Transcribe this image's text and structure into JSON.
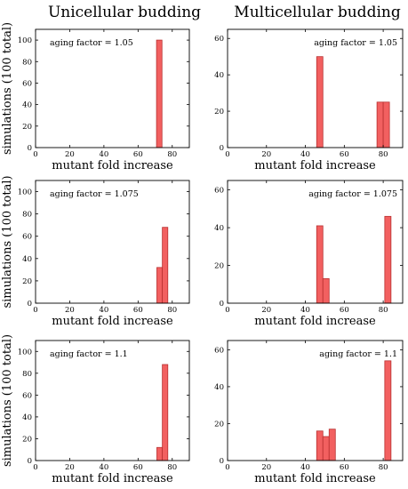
{
  "column_titles": [
    "Unicellular budding",
    "Multicellular budding"
  ],
  "chart_data": [
    {
      "type": "bar",
      "annotation": "aging factor = 1.05",
      "xlabel": "mutant fold increase",
      "ylabel": "simulations (100 total)",
      "xlim": [
        0,
        90
      ],
      "ylim": [
        0,
        110
      ],
      "xticks": [
        0,
        20,
        40,
        60,
        80
      ],
      "yticks": [
        0,
        20,
        40,
        60,
        80,
        100
      ],
      "bin_width": 3.2,
      "bars": [
        {
          "x": 72.4,
          "value": 100
        }
      ]
    },
    {
      "type": "bar",
      "annotation": "aging factor = 1.05",
      "xlabel": "mutant fold increase",
      "ylabel": "",
      "xlim": [
        0,
        90
      ],
      "ylim": [
        0,
        65
      ],
      "xticks": [
        0,
        20,
        40,
        60,
        80
      ],
      "yticks": [
        0,
        20,
        40,
        60
      ],
      "bin_width": 3.2,
      "bars": [
        {
          "x": 47.4,
          "value": 50
        },
        {
          "x": 78.4,
          "value": 25
        },
        {
          "x": 81.6,
          "value": 25
        }
      ]
    },
    {
      "type": "bar",
      "annotation": "aging factor = 1.075",
      "xlabel": "mutant fold increase",
      "ylabel": "simulations (100 total)",
      "xlim": [
        0,
        90
      ],
      "ylim": [
        0,
        110
      ],
      "xticks": [
        0,
        20,
        40,
        60,
        80
      ],
      "yticks": [
        0,
        20,
        40,
        60,
        80,
        100
      ],
      "bin_width": 3.2,
      "bars": [
        {
          "x": 72.6,
          "value": 32
        },
        {
          "x": 75.8,
          "value": 68
        }
      ]
    },
    {
      "type": "bar",
      "annotation": "aging factor = 1.075",
      "xlabel": "mutant fold increase",
      "ylabel": "",
      "xlim": [
        0,
        90
      ],
      "ylim": [
        0,
        65
      ],
      "xticks": [
        0,
        20,
        40,
        60,
        80
      ],
      "yticks": [
        0,
        20,
        40,
        60
      ],
      "bin_width": 3.2,
      "bars": [
        {
          "x": 47.4,
          "value": 41
        },
        {
          "x": 50.6,
          "value": 13
        },
        {
          "x": 82.4,
          "value": 46
        }
      ]
    },
    {
      "type": "bar",
      "annotation": "aging factor = 1.1",
      "xlabel": "mutant fold increase",
      "ylabel": "simulations (100 total)",
      "xlim": [
        0,
        90
      ],
      "ylim": [
        0,
        110
      ],
      "xticks": [
        0,
        20,
        40,
        60,
        80
      ],
      "yticks": [
        0,
        20,
        40,
        60,
        80,
        100
      ],
      "bin_width": 3.2,
      "bars": [
        {
          "x": 72.6,
          "value": 12
        },
        {
          "x": 75.8,
          "value": 88
        }
      ]
    },
    {
      "type": "bar",
      "annotation": "aging factor = 1.1",
      "xlabel": "mutant fold increase",
      "ylabel": "",
      "xlim": [
        0,
        90
      ],
      "ylim": [
        0,
        65
      ],
      "xticks": [
        0,
        20,
        40,
        60,
        80
      ],
      "yticks": [
        0,
        20,
        40,
        60
      ],
      "bin_width": 3.2,
      "bars": [
        {
          "x": 47.4,
          "value": 16
        },
        {
          "x": 50.6,
          "value": 13
        },
        {
          "x": 53.8,
          "value": 17
        },
        {
          "x": 82.4,
          "value": 54
        }
      ]
    }
  ],
  "colors": {
    "bar_fill": "#f26060",
    "bar_stroke": "#b83030",
    "axis": "#000000"
  }
}
